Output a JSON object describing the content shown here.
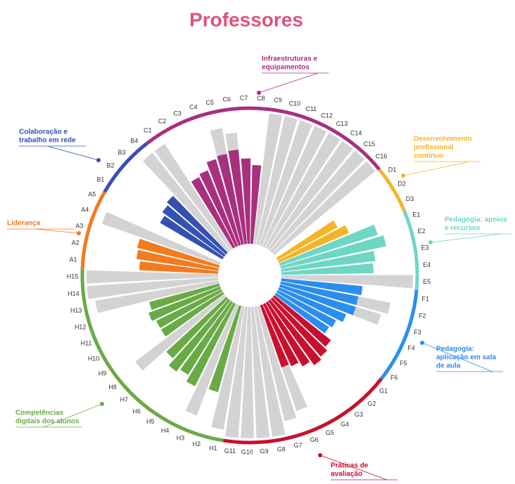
{
  "chart_data": {
    "type": "radial_bar",
    "title": "Professores",
    "ylim": [
      0,
      100
    ],
    "grey_color": "#d3d3d3",
    "groups": [
      {
        "name": [
          "Liderança"
        ],
        "color": "#f47a20",
        "items": [
          "A1",
          "A2",
          "A3",
          "A4",
          "A5"
        ],
        "values": [
          60,
          63,
          64,
          null,
          null
        ],
        "grey_values": [
          null,
          null,
          null,
          95,
          null
        ]
      },
      {
        "name": [
          "Colaboração e",
          "trabalho em rede"
        ],
        "color": "#3451b2",
        "items": [
          "B1",
          "B2",
          "B3",
          "B4"
        ],
        "values": [
          55,
          58,
          60,
          null
        ],
        "grey_values": [
          null,
          null,
          null,
          95
        ]
      },
      {
        "name": [
          "Infraestruturas e",
          "equipamentos"
        ],
        "color": "#a8307e",
        "items": [
          "C1",
          "C2",
          "C3",
          "C4",
          "C5",
          "C6",
          "C7",
          "C8",
          "C9",
          "C10",
          "C11",
          "C12",
          "C13",
          "C14",
          "C15",
          "C16"
        ],
        "values": [
          null,
          60,
          62,
          68,
          70,
          72,
          65,
          60,
          null,
          null,
          null,
          null,
          null,
          null,
          null,
          null
        ],
        "grey_values": [
          95,
          null,
          null,
          null,
          90,
          85,
          null,
          null,
          100,
          100,
          100,
          100,
          100,
          100,
          100,
          100
        ]
      },
      {
        "name": [
          "Desenvolvimento",
          "profissional",
          "contínuo"
        ],
        "color": "#f5b428",
        "items": [
          "D1",
          "D2",
          "D3"
        ],
        "values": [
          null,
          52,
          58
        ],
        "grey_values": [
          null,
          null,
          null
        ]
      },
      {
        "name": [
          "Pedagogia: apoios",
          "e recursos"
        ],
        "color": "#6fd6c4",
        "items": [
          "E1",
          "E2",
          "E3",
          "E4",
          "E5"
        ],
        "values": [
          78,
          82,
          72,
          70,
          null
        ],
        "grey_values": [
          null,
          null,
          null,
          null,
          100
        ]
      },
      {
        "name": [
          "Pedagogia:",
          "aplicação em sala",
          "de aula"
        ],
        "color": "#2a8ef0",
        "items": [
          "F1",
          "F2",
          "F3",
          "F4",
          "F5",
          "F6"
        ],
        "values": [
          62,
          60,
          60,
          55,
          50,
          48
        ],
        "grey_values": [
          null,
          85,
          80,
          null,
          null,
          null
        ]
      },
      {
        "name": [
          "Práticas de",
          "avaliação"
        ],
        "color": "#c8102e",
        "items": [
          "G1",
          "G2",
          "G3",
          "G4",
          "G5",
          "G6",
          "G7",
          "G8",
          "G9",
          "G10",
          "G11"
        ],
        "values": [
          55,
          58,
          60,
          56,
          52,
          50,
          null,
          null,
          null,
          null,
          null
        ],
        "grey_values": [
          null,
          null,
          null,
          null,
          null,
          85,
          90,
          100,
          100,
          100,
          100
        ]
      },
      {
        "name": [
          "Competências",
          "digitais dos alunos"
        ],
        "color": "#6aaa46",
        "items": [
          "H1",
          "H2",
          "H3",
          "H4",
          "H5",
          "H6",
          "H7",
          "H8",
          "H9",
          "H10",
          "H11",
          "H12",
          "H13",
          "H14",
          "H15"
        ],
        "values": [
          null,
          68,
          null,
          70,
          65,
          68,
          62,
          null,
          55,
          55,
          58,
          55,
          null,
          null,
          null
        ],
        "grey_values": [
          95,
          null,
          90,
          null,
          null,
          null,
          null,
          85,
          null,
          null,
          null,
          null,
          95,
          100,
          100
        ]
      }
    ]
  }
}
